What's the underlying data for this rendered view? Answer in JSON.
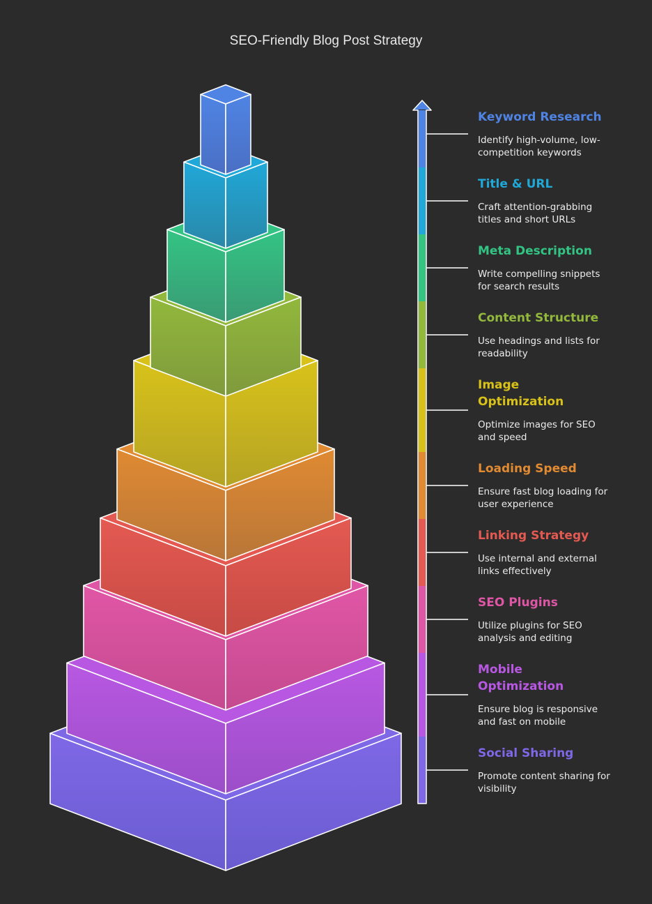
{
  "title": "SEO-Friendly Blog Post Strategy",
  "steps": [
    {
      "label": "Keyword Research",
      "desc": "Identify high-volume, low-competition keywords",
      "color": "#4f84e4",
      "color_dark": "#4a6fc4"
    },
    {
      "label": "Title & URL",
      "desc": "Craft attention-grabbing titles and short URLs",
      "color": "#20a8d8",
      "color_dark": "#2a87a8"
    },
    {
      "label": "Meta Description",
      "desc": "Write compelling snippets for search results",
      "color": "#33c484",
      "color_dark": "#3a9a74"
    },
    {
      "label": "Content Structure",
      "desc": "Use headings and lists for readability",
      "color": "#92b83c",
      "color_dark": "#7f9a3c"
    },
    {
      "label": "Image Optimization",
      "desc": "Optimize images for SEO and speed",
      "color": "#d8c21a",
      "color_dark": "#b5a324"
    },
    {
      "label": "Loading Speed",
      "desc": "Ensure fast blog loading for user experience",
      "color": "#e08a32",
      "color_dark": "#b87638"
    },
    {
      "label": "Linking Strategy",
      "desc": "Use internal and external links effectively",
      "color": "#e45a52",
      "color_dark": "#c64a44"
    },
    {
      "label": "SEO Plugins",
      "desc": "Utilize plugins for SEO analysis and editing",
      "color": "#e056a6",
      "color_dark": "#c44a8e"
    },
    {
      "label": "Mobile Optimization",
      "desc": "Ensure blog is responsive and fast on mobile",
      "color": "#b858e2",
      "color_dark": "#9c4ec8"
    },
    {
      "label": "Social Sharing",
      "desc": "Promote content sharing for visibility",
      "color": "#7f68e6",
      "color_dark": "#6a5cd0"
    }
  ]
}
